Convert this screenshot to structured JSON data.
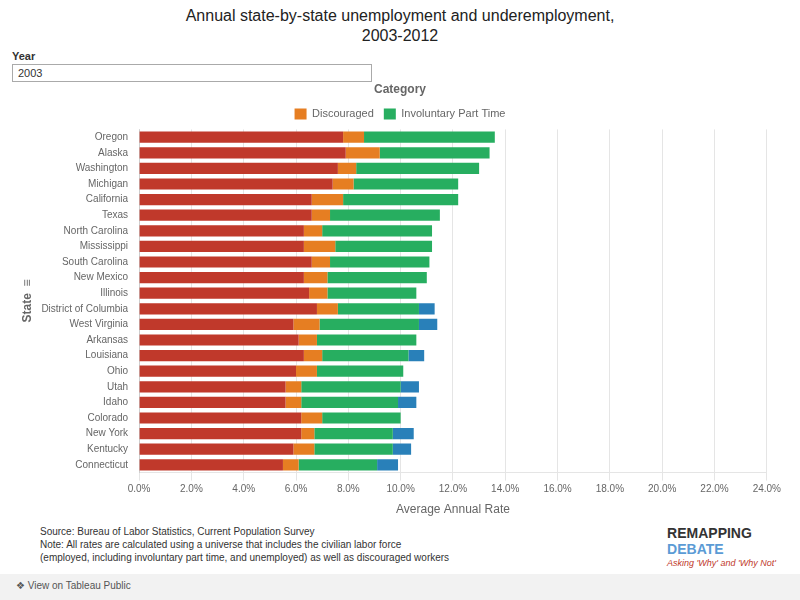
{
  "chart_data": {
    "type": "bar",
    "orientation": "horizontal",
    "stacked": true,
    "title": "Annual state-by-state unemployment and underemployment,\n2003-2012",
    "xlabel": "Average Annual Rate",
    "ylabel": "State  ≡",
    "legend_title": "Category",
    "legend": "top",
    "grid": "x",
    "year_label": "Year",
    "year_value": "2003",
    "notes": [
      "Source: Bureau of Labor Statistics, Current Population Survey",
      "Note: All rates are calculated using a universe that includes the civilian labor force",
      "(employed, including involuntary part time, and unemployed) as well as discouraged workers"
    ],
    "logo": [
      "REMAPPING",
      "DEBATE",
      "Asking 'Why' and 'Why Not'"
    ],
    "footer": "❖ View on Tableau Public",
    "categories": [
      "Oregon",
      "Alaska",
      "Washington",
      "Michigan",
      "California",
      "Texas",
      "North Carolina",
      "Mississippi",
      "South Carolina",
      "New Mexico",
      "Illinois",
      "District of Columbia",
      "West Virginia",
      "Arkansas",
      "Louisiana",
      "Ohio",
      "Utah",
      "Idaho",
      "Colorado",
      "New York",
      "Kentucky",
      "Connecticut"
    ],
    "series": [
      {
        "color": "#c0392b",
        "values": [
          0.078,
          0.079,
          0.076,
          0.074,
          0.066,
          0.066,
          0.063,
          0.063,
          0.066,
          0.063,
          0.065,
          0.068,
          0.059,
          0.061,
          0.063,
          0.06,
          0.056,
          0.056,
          0.062,
          0.062,
          0.059,
          0.055
        ]
      },
      {
        "name": "Discouraged",
        "color": "#e67e22",
        "values": [
          0.008,
          0.013,
          0.007,
          0.008,
          0.012,
          0.007,
          0.007,
          0.012,
          0.007,
          0.009,
          0.007,
          0.008,
          0.01,
          0.007,
          0.007,
          0.008,
          0.006,
          0.006,
          0.008,
          0.005,
          0.008,
          0.006
        ]
      },
      {
        "name": "Involuntary Part Time",
        "color": "#27ae60",
        "values": [
          0.05,
          0.042,
          0.047,
          0.04,
          0.044,
          0.042,
          0.042,
          0.037,
          0.038,
          0.038,
          0.034,
          0.031,
          0.038,
          0.038,
          0.033,
          0.033,
          0.038,
          0.037,
          0.03,
          0.03,
          0.03,
          0.03
        ]
      },
      {
        "color": "#2980b9",
        "values": [
          0.0,
          0.0,
          0.0,
          0.0,
          0.0,
          0.0,
          0.0,
          0.0,
          0.0,
          0.0,
          0.0,
          0.006,
          0.007,
          0.0,
          0.006,
          0.0,
          0.007,
          0.007,
          0.0,
          0.008,
          0.007,
          0.008
        ]
      }
    ],
    "xlim": [
      0,
      0.24
    ],
    "xticks": [
      {
        "value": 0.0,
        "label": "0.0%"
      },
      {
        "value": 0.02,
        "label": "2.0%"
      },
      {
        "value": 0.04,
        "label": "4.0%"
      },
      {
        "value": 0.06,
        "label": "6.0%"
      },
      {
        "value": 0.08,
        "label": "8.0%"
      },
      {
        "value": 0.1,
        "label": "10.0%"
      },
      {
        "value": 0.12,
        "label": "12.0%"
      },
      {
        "value": 0.14,
        "label": "14.0%"
      },
      {
        "value": 0.16,
        "label": "16.0%"
      },
      {
        "value": 0.18,
        "label": "18.0%"
      },
      {
        "value": 0.2,
        "label": "20.0%"
      },
      {
        "value": 0.22,
        "label": "22.0%"
      },
      {
        "value": 0.24,
        "label": "24.0%"
      }
    ]
  }
}
